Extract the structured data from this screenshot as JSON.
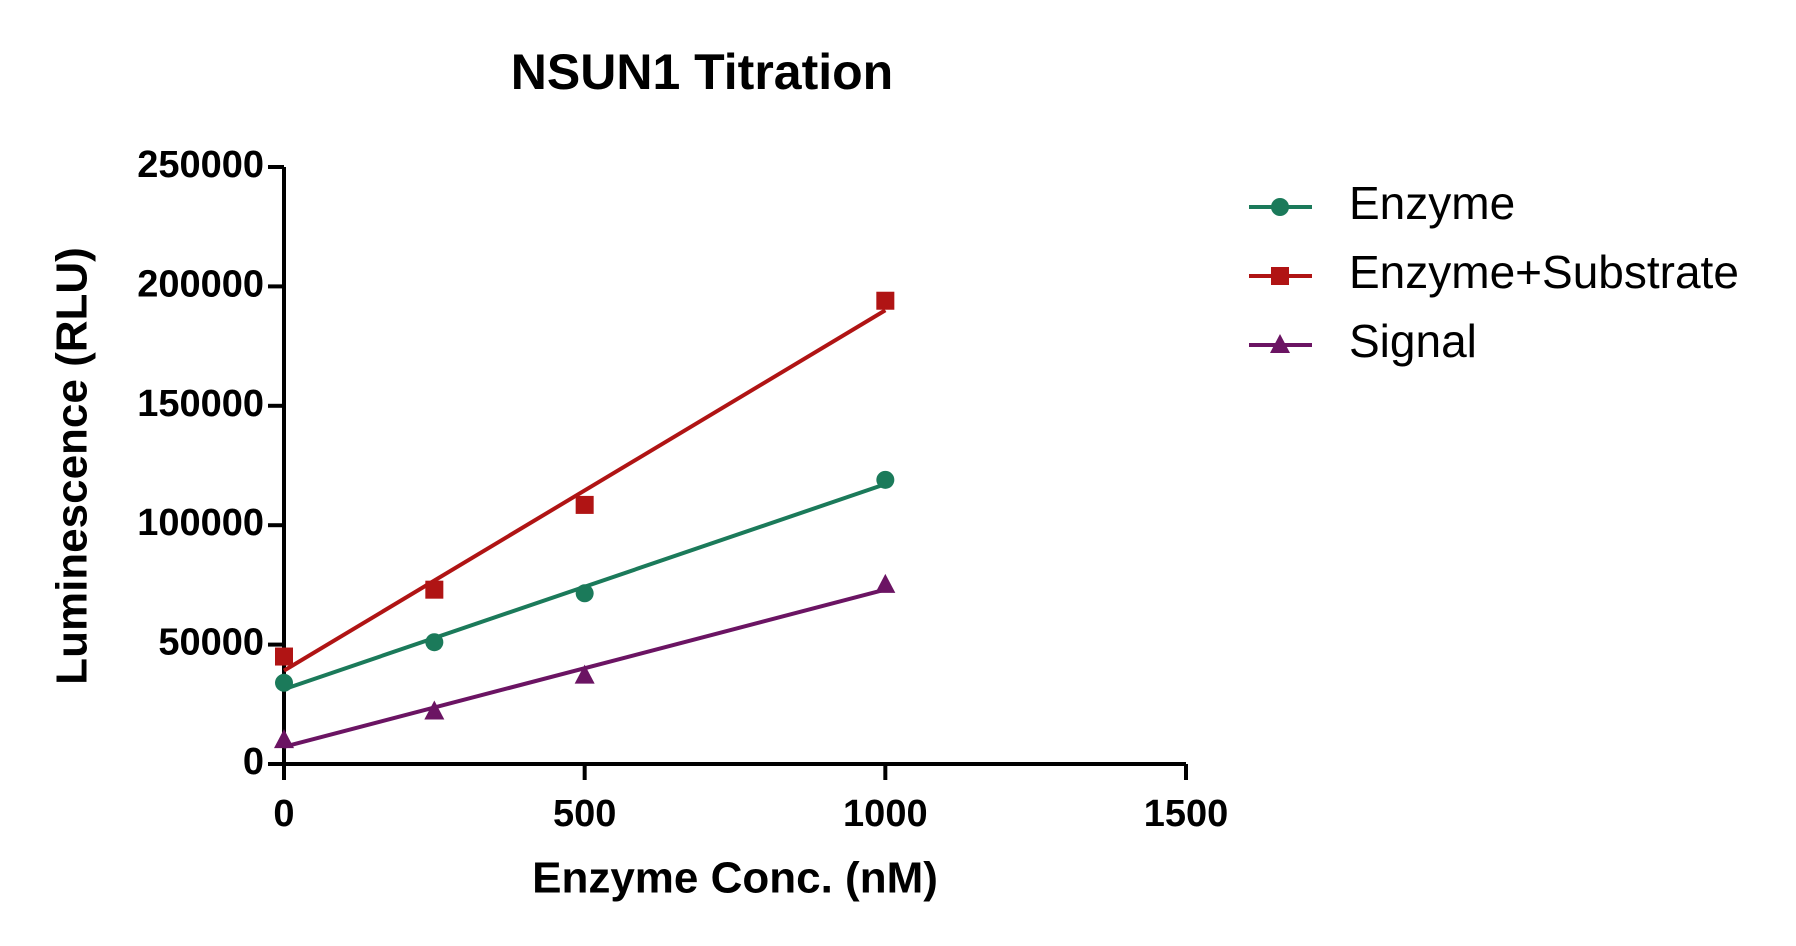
{
  "chart_data": {
    "type": "scatter",
    "title": "NSUN1 Titration",
    "x_label": "Enzyme Conc. (nM)",
    "y_label": "Luminescence (RLU)",
    "x": [
      0,
      250,
      500,
      1000
    ],
    "series": [
      {
        "name": "Enzyme",
        "color": "#1b7a5a",
        "marker": "circle",
        "values": [
          34000,
          51000,
          71500,
          119000
        ]
      },
      {
        "name": "Enzyme+Substrate",
        "color": "#b01414",
        "marker": "square",
        "values": [
          45000,
          73000,
          108500,
          194000
        ]
      },
      {
        "name": "Signal",
        "color": "#6b1463",
        "marker": "triangle",
        "values": [
          10000,
          22000,
          37000,
          75000
        ]
      }
    ],
    "fit": "linear",
    "xlim": [
      0,
      1500
    ],
    "xticks": [
      0,
      500,
      1000,
      1500
    ],
    "ylim": [
      0,
      250000
    ],
    "yticks": [
      0,
      50000,
      100000,
      150000,
      200000,
      250000
    ],
    "legend": "right"
  }
}
